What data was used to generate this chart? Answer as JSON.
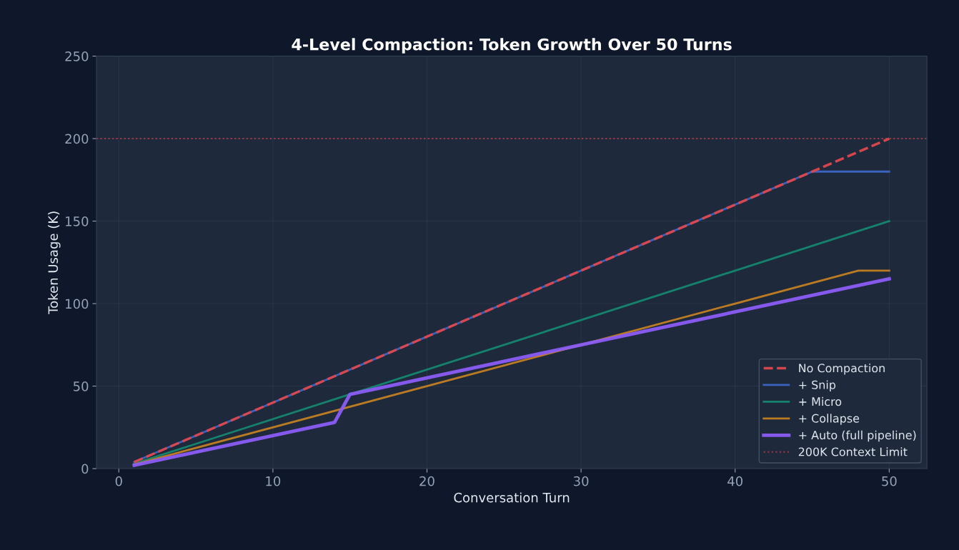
{
  "chart_data": {
    "type": "line",
    "title": "4-Level Compaction: Token Growth Over 50 Turns",
    "xlabel": "Conversation Turn",
    "ylabel": "Token Usage (K)",
    "xlim": [
      -1.45,
      52.45
    ],
    "xticks": [
      0,
      10,
      20,
      30,
      40,
      50
    ],
    "ylim": [
      0,
      250
    ],
    "yticks": [
      0,
      50,
      100,
      150,
      200,
      250
    ],
    "grid": true,
    "legend": "bottom right",
    "series": [
      {
        "name": "No Compaction",
        "color": "#e0474c",
        "line_style": "dashed",
        "x": [
          1,
          50
        ],
        "values": [
          4,
          200
        ]
      },
      {
        "name": "+ Snip",
        "color": "#3b66c4",
        "line_style": "solid",
        "x": [
          1,
          45,
          50
        ],
        "values": [
          4,
          180,
          180
        ]
      },
      {
        "name": "+ Micro",
        "color": "#14876f",
        "line_style": "solid",
        "x": [
          1,
          50
        ],
        "values": [
          3,
          150
        ]
      },
      {
        "name": "+ Collapse",
        "color": "#c47f22",
        "line_style": "solid",
        "x": [
          1,
          48,
          50
        ],
        "values": [
          2.5,
          120,
          120
        ]
      },
      {
        "name": "+ Auto (full pipeline)",
        "color": "#8b5cf6",
        "line_style": "solid",
        "x": [
          1,
          14,
          15,
          50
        ],
        "values": [
          2,
          28,
          45,
          115
        ]
      }
    ],
    "ref_lines": [
      {
        "axis": "y",
        "value": 200,
        "label": "200K Context Limit",
        "color": "#a13a45",
        "line_style": "dotted"
      }
    ]
  }
}
